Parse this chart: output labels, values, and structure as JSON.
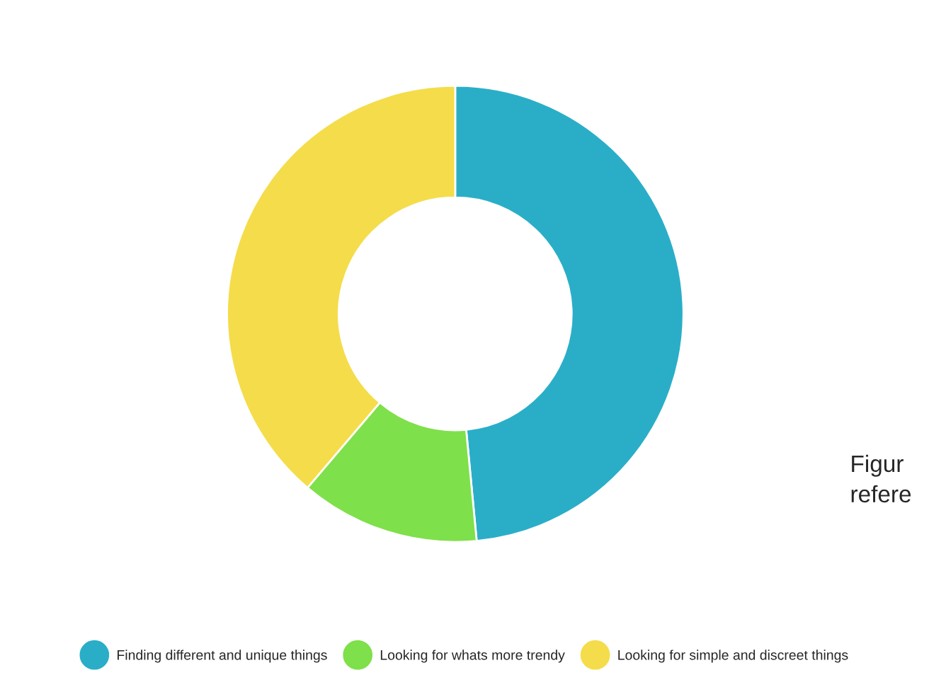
{
  "chart_data": {
    "type": "donut",
    "categories": [
      "Finding different and unique things",
      "Looking for whats more trendy",
      "Looking for simple and discreet things"
    ],
    "values": [
      48.5,
      12.7,
      38.8
    ],
    "colors": [
      "#2aaec8",
      "#7ee04a",
      "#f5dc4a"
    ],
    "legend": "bottom",
    "annotations": [
      "Figur",
      "refere"
    ]
  }
}
